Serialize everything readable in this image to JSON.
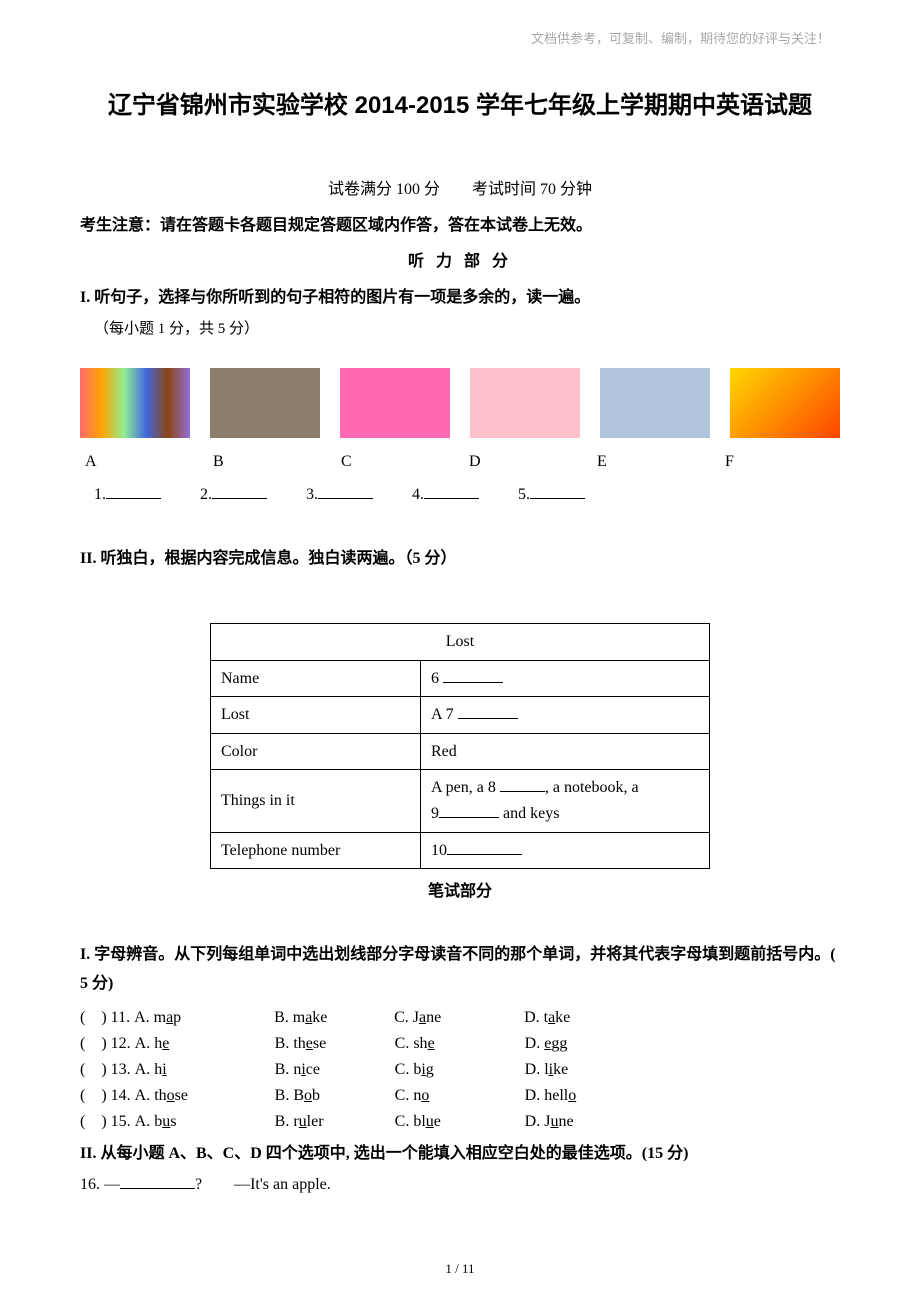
{
  "watermark": "文档供参考，可复制、编制，期待您的好评与关注！",
  "title": "辽宁省锦州市实验学校 2014-2015 学年七年级上学期期中英语试题",
  "score_time": "试卷满分 100 分  考试时间 70 分钟",
  "notice": "考生注意：请在答题卡各题目规定答题区域内作答，答在本试卷上无效。",
  "listening_header": "听 力 部 分",
  "section_I": {
    "title": "I. 听句子，选择与你所听到的句子相符的图片有一项是多余的，读一遍。",
    "note": "（每小题 1 分，共 5 分）",
    "labels": [
      "A",
      "B",
      "C",
      "D",
      "E",
      "F"
    ],
    "blanks": [
      "1.",
      "2.",
      "3.",
      "4.",
      "5."
    ]
  },
  "section_II_listen": {
    "title": "II. 听独白，根据内容完成信息。独白读两遍。（5 分）",
    "table": {
      "header": "Lost",
      "rows": [
        {
          "left": "Name",
          "right_prefix": "6 ",
          "underline": true,
          "right_suffix": ""
        },
        {
          "left": "Lost",
          "right_prefix": "A 7 ",
          "underline": true,
          "right_suffix": ""
        },
        {
          "left": "Color",
          "right_prefix": "Red",
          "underline": false,
          "right_suffix": ""
        },
        {
          "left": "Things in it",
          "right_prefix": "A  pen,  a  8  ",
          "underline": true,
          "right_suffix": ",  a  notebook,  a ",
          "second_line_prefix": "9",
          "second_underline": true,
          "second_suffix": " and keys"
        },
        {
          "left": "Telephone number",
          "right_prefix": "10",
          "underline": true,
          "right_suffix": ""
        }
      ]
    }
  },
  "written_header": "笔试部分",
  "phonetics": {
    "title": "I. 字母辨音。从下列每组单词中选出划线部分字母读音不同的那个单词，并将其代表字母填到题前括号内。( 5 分)",
    "rows": [
      {
        "num": "11",
        "a_pre": "m",
        "a_u": "a",
        "a_post": "p",
        "b_pre": "m",
        "b_u": "a",
        "b_post": "ke",
        "c_pre": "J",
        "c_u": "a",
        "c_post": "ne",
        "d_pre": "t",
        "d_u": "a",
        "d_post": "ke"
      },
      {
        "num": "12",
        "a_pre": "h",
        "a_u": "e",
        "a_post": "",
        "b_pre": "th",
        "b_u": "e",
        "b_post": "se",
        "c_pre": "sh",
        "c_u": "e",
        "c_post": "",
        "d_pre": "",
        "d_u": "e",
        "d_post": "gg"
      },
      {
        "num": "13",
        "a_pre": "h",
        "a_u": "i",
        "a_post": "",
        "b_pre": "n",
        "b_u": "i",
        "b_post": "ce",
        "c_pre": "b",
        "c_u": "i",
        "c_post": "g",
        "d_pre": "l",
        "d_u": "i",
        "d_post": "ke"
      },
      {
        "num": "14",
        "a_pre": "th",
        "a_u": "o",
        "a_post": "se",
        "b_pre": "B",
        "b_u": "o",
        "b_post": "b",
        "c_pre": "n",
        "c_u": "o",
        "c_post": "",
        "d_pre": "hell",
        "d_u": "o",
        "d_post": ""
      },
      {
        "num": "15",
        "a_pre": "b",
        "a_u": "u",
        "a_post": "s",
        "b_pre": "r",
        "b_u": "u",
        "b_post": "ler",
        "c_pre": "bl",
        "c_u": "u",
        "c_post": "e",
        "d_pre": "J",
        "d_u": "u",
        "d_post": "ne"
      }
    ]
  },
  "section_II_written": {
    "title": "II. 从每小题 A、B、C、D 四个选项中, 选出一个能填入相应空白处的最佳选项。(15 分)",
    "q16_prefix": "16. —",
    "q16_suffix": "?  —It's an apple."
  },
  "page_number": "1 / 11"
}
